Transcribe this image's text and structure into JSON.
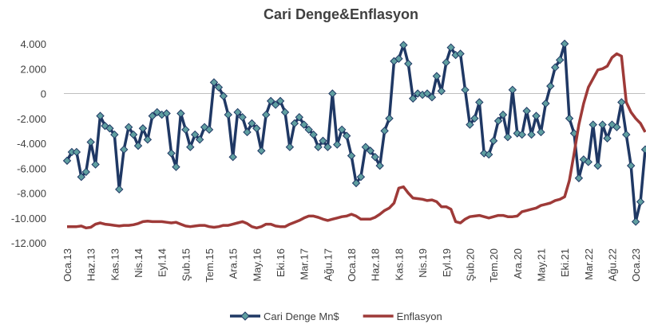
{
  "chart_data": {
    "type": "line",
    "title": "Cari Denge&Enflasyon",
    "categories": [
      "Oca.13",
      null,
      null,
      null,
      null,
      "Haz.13",
      null,
      null,
      null,
      null,
      "Kas.13",
      null,
      null,
      null,
      null,
      "Nis.14",
      null,
      null,
      null,
      null,
      "Eyl.14",
      null,
      null,
      null,
      null,
      "Şub.15",
      null,
      null,
      null,
      null,
      "Tem.15",
      null,
      null,
      null,
      null,
      "Ara.15",
      null,
      null,
      null,
      null,
      "May.16",
      null,
      null,
      null,
      null,
      "Eki.16",
      null,
      null,
      null,
      null,
      "Mar.17",
      null,
      null,
      null,
      null,
      "Ağu.17",
      null,
      null,
      null,
      null,
      "Oca.18",
      null,
      null,
      null,
      null,
      "Haz.18",
      null,
      null,
      null,
      null,
      "Kas.18",
      null,
      null,
      null,
      null,
      "Nis.19",
      null,
      null,
      null,
      null,
      "Eyl.19",
      null,
      null,
      null,
      null,
      "Şub.20",
      null,
      null,
      null,
      null,
      "Tem.20",
      null,
      null,
      null,
      null,
      "Ara.20",
      null,
      null,
      null,
      null,
      "May.21",
      null,
      null,
      null,
      null,
      "Eki.21",
      null,
      null,
      null,
      null,
      "Mar.22",
      null,
      null,
      null,
      null,
      "Ağu.22",
      null,
      null,
      null,
      null,
      "Oca.23",
      null,
      null
    ],
    "series": [
      {
        "name": "Cari Denge Mn$",
        "color": "#1f3864",
        "marker_color": "#5f9ea0",
        "values": [
          -5400,
          -4700,
          -4700,
          -6700,
          -6300,
          -3900,
          -5700,
          -1800,
          -2600,
          -2800,
          -3300,
          -7700,
          -4500,
          -2700,
          -3300,
          -4200,
          -2800,
          -3700,
          -1800,
          -1500,
          -1700,
          -1600,
          -4800,
          -5900,
          -1600,
          -2900,
          -4300,
          -3300,
          -3700,
          -2700,
          -2900,
          900,
          500,
          -200,
          -1700,
          -5100,
          -1500,
          -1900,
          -3100,
          -2400,
          -2800,
          -4600,
          -1700,
          -600,
          -900,
          -600,
          -1500,
          -4300,
          -2400,
          -1900,
          -2500,
          -2900,
          -3300,
          -4300,
          -3800,
          -4300,
          0,
          -4100,
          -2900,
          -3400,
          -5000,
          -7200,
          -6700,
          -4300,
          -4600,
          -5100,
          -5800,
          -3000,
          -2000,
          2600,
          2800,
          3900,
          2400,
          -400,
          0,
          -100,
          0,
          -300,
          1400,
          200,
          2500,
          3700,
          3100,
          3200,
          300,
          -2500,
          -2000,
          -700,
          -4800,
          -4900,
          -3800,
          -2200,
          -1700,
          -3500,
          300,
          -3200,
          -3300,
          -1400,
          -3300,
          -1800,
          -3100,
          -800,
          600,
          2100,
          2700,
          4000,
          -2000,
          -3200,
          -6800,
          -5300,
          -5500,
          -2500,
          -5800,
          -2500,
          -3600,
          -2500,
          -2700,
          -700,
          -3300,
          -5800,
          -10300,
          -8700,
          -4500
        ]
      },
      {
        "name": "Enflasyon",
        "color": "#9e3a38",
        "values": [
          -10700,
          -10700,
          -10700,
          -10650,
          -10800,
          -10750,
          -10500,
          -10400,
          -10500,
          -10550,
          -10600,
          -10650,
          -10600,
          -10600,
          -10550,
          -10450,
          -10300,
          -10250,
          -10300,
          -10300,
          -10300,
          -10350,
          -10400,
          -10350,
          -10500,
          -10650,
          -10700,
          -10650,
          -10600,
          -10600,
          -10700,
          -10750,
          -10700,
          -10600,
          -10600,
          -10500,
          -10400,
          -10300,
          -10450,
          -10700,
          -10800,
          -10700,
          -10500,
          -10500,
          -10650,
          -10700,
          -10700,
          -10500,
          -10350,
          -10200,
          -10000,
          -9850,
          -9850,
          -9950,
          -10100,
          -10200,
          -10100,
          -10000,
          -9900,
          -9850,
          -9700,
          -9850,
          -10100,
          -10100,
          -10100,
          -9950,
          -9700,
          -9400,
          -9200,
          -8800,
          -7600,
          -7500,
          -8000,
          -8400,
          -8450,
          -8500,
          -8600,
          -8550,
          -8700,
          -9100,
          -9100,
          -9300,
          -10300,
          -10400,
          -10100,
          -9900,
          -9850,
          -9800,
          -9900,
          -10000,
          -9900,
          -9800,
          -9800,
          -9900,
          -9900,
          -9850,
          -9500,
          -9400,
          -9300,
          -9200,
          -9000,
          -8900,
          -8800,
          -8600,
          -8500,
          -8300,
          -7000,
          -4800,
          -2500,
          -800,
          500,
          1200,
          1900,
          2000,
          2200,
          2900,
          3200,
          3000,
          -700,
          -1500,
          -2000,
          -2400,
          -3100
        ]
      }
    ],
    "ylim": [
      -12000,
      4000
    ],
    "yticks": [
      {
        "value": -12000,
        "label": "-12.000"
      },
      {
        "value": -10000,
        "label": "-10.000"
      },
      {
        "value": -8000,
        "label": "-8.000"
      },
      {
        "value": -6000,
        "label": "-6.000"
      },
      {
        "value": -4000,
        "label": "-4.000"
      },
      {
        "value": -2000,
        "label": "-2.000"
      },
      0,
      {
        "value": 2000,
        "label": "2.000"
      },
      {
        "value": 4000,
        "label": "4.000"
      }
    ],
    "grid": false,
    "legend": "bottom"
  }
}
